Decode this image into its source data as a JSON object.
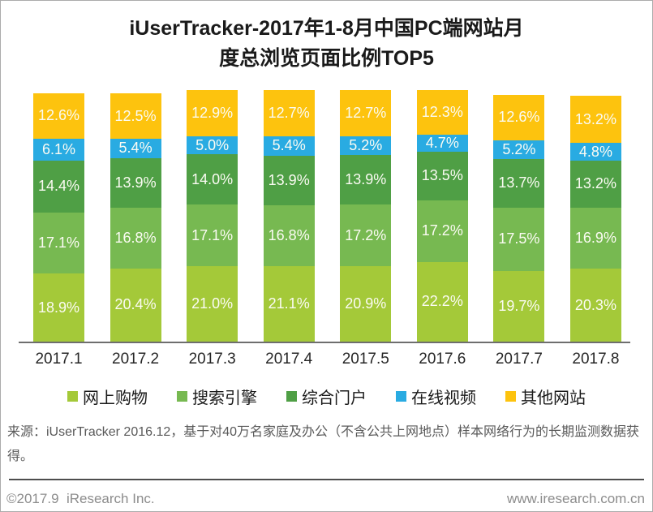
{
  "title": {
    "line1": "iUserTracker-2017年1-8月中国PC端网站月",
    "line2": "度总浏览页面比例TOP5"
  },
  "chart_data": {
    "type": "bar",
    "subtype": "stacked-vertical",
    "categories": [
      "2017.1",
      "2017.2",
      "2017.3",
      "2017.4",
      "2017.5",
      "2017.6",
      "2017.7",
      "2017.8"
    ],
    "series": [
      {
        "name": "网上购物",
        "color": "#A4C939",
        "values": [
          18.9,
          20.4,
          21.0,
          21.1,
          20.9,
          22.2,
          19.7,
          20.3
        ]
      },
      {
        "name": "搜索引擎",
        "color": "#77B951",
        "values": [
          17.1,
          16.8,
          17.1,
          16.8,
          17.2,
          17.2,
          17.5,
          16.9
        ]
      },
      {
        "name": "综合门户",
        "color": "#4F9F45",
        "values": [
          14.4,
          13.9,
          14.0,
          13.9,
          13.9,
          13.5,
          13.7,
          13.2
        ]
      },
      {
        "name": "在线视频",
        "color": "#29ABE2",
        "values": [
          6.1,
          5.4,
          5.0,
          5.4,
          5.2,
          4.7,
          5.2,
          4.8
        ]
      },
      {
        "name": "其他网站",
        "color": "#FDC30E",
        "values": [
          12.6,
          12.5,
          12.9,
          12.7,
          12.7,
          12.3,
          12.6,
          13.2
        ]
      }
    ],
    "value_format": "percent",
    "value_suffix": "%",
    "ylim": [
      0,
      70
    ],
    "grid": false,
    "legend_position": "bottom",
    "xlabel": "",
    "ylabel": ""
  },
  "source_note": "来源：iUserTracker 2016.12，基于对40万名家庭及办公（不含公共上网地点）样本网络行为的长期监测数据获得。",
  "footer": {
    "left": "©2017.9  iResearch Inc.",
    "right": "www.iresearch.com.cn"
  }
}
